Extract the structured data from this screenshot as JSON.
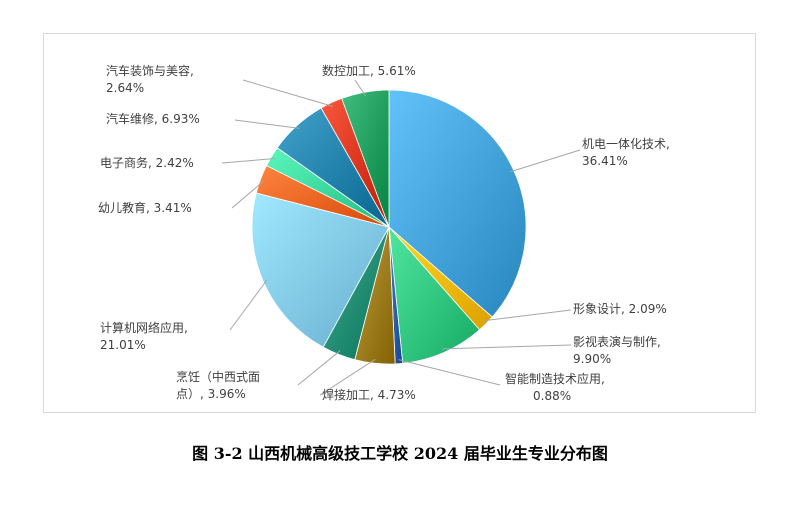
{
  "caption": "图 3-2 山西机械高级技工学校 2024 届毕业生专业分布图",
  "chart_data": {
    "type": "pie",
    "title": "",
    "slices": [
      {
        "name": "机电一体化技术",
        "value": 36.41,
        "label_line1": "机电一体化技术,",
        "label_line2": "36.41%",
        "color": "#3f9fd6"
      },
      {
        "name": "形象设计",
        "value": 2.09,
        "label_line1": "形象设计, 2.09%",
        "label_line2": "",
        "color": "#f5b800"
      },
      {
        "name": "影视表演与制作",
        "value": 9.9,
        "label_line1": "影视表演与制作,",
        "label_line2": "9.90%",
        "color": "#2ec37c"
      },
      {
        "name": "智能制造技术应用",
        "value": 0.88,
        "label_line1": "智能制造技术应用,",
        "label_line2": "0.88%",
        "color": "#2a5da8"
      },
      {
        "name": "焊接加工",
        "value": 4.73,
        "label_line1": "焊接加工, 4.73%",
        "label_line2": "",
        "color": "#9a7a1a"
      },
      {
        "name": "烹饪（中西式面点）",
        "value": 3.96,
        "label_line1": "烹饪（中西式面",
        "label_line2": "点）, 3.96%",
        "color": "#1f8a70"
      },
      {
        "name": "计算机网络应用",
        "value": 21.01,
        "label_line1": "计算机网络应用,",
        "label_line2": "21.01%",
        "color": "#7ec6e6"
      },
      {
        "name": "幼儿教育",
        "value": 3.41,
        "label_line1": "幼儿教育, 3.41%",
        "label_line2": "",
        "color": "#f2611e"
      },
      {
        "name": "电子商务",
        "value": 2.42,
        "label_line1": "电子商务, 2.42%",
        "label_line2": "",
        "color": "#38d49a"
      },
      {
        "name": "汽车维修",
        "value": 6.93,
        "label_line1": "汽车维修, 6.93%",
        "label_line2": "",
        "color": "#1f7fa8"
      },
      {
        "name": "汽车装饰与美容",
        "value": 2.64,
        "label_line1": "汽车装饰与美容,",
        "label_line2": "2.64%",
        "color": "#d8341c"
      },
      {
        "name": "数控加工",
        "value": 5.61,
        "label_line1": "数控加工, 5.61%",
        "label_line2": "",
        "color": "#1e9b5a"
      }
    ]
  }
}
